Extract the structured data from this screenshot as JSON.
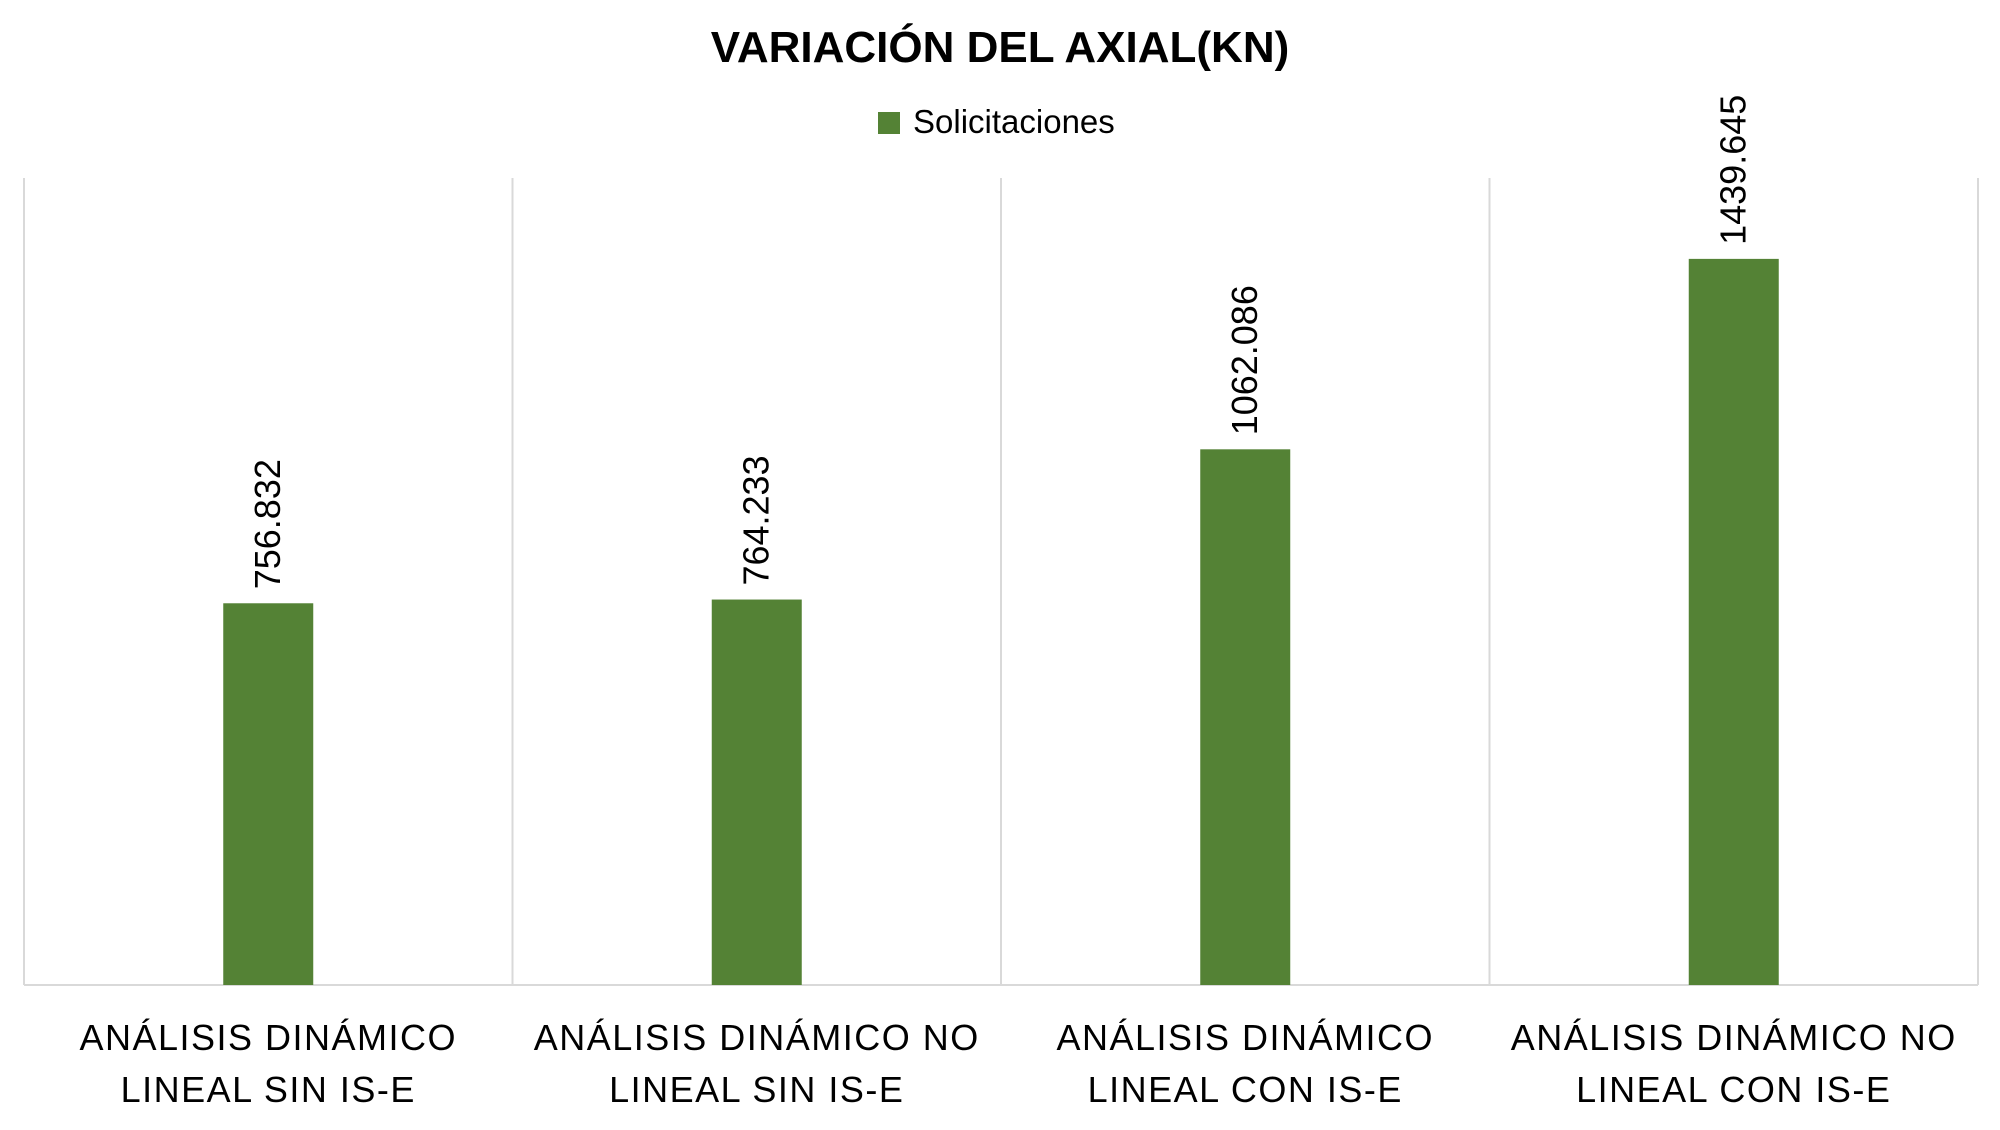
{
  "chart_data": {
    "type": "bar",
    "title": "VARIACIÓN DEL AXIAL(KN)",
    "categories": [
      [
        "ANÁLISIS DINÁMICO",
        "LINEAL SIN IS-E"
      ],
      [
        "ANÁLISIS DINÁMICO NO",
        "LINEAL SIN IS-E"
      ],
      [
        "ANÁLISIS DINÁMICO",
        "LINEAL CON IS-E"
      ],
      [
        "ANÁLISIS DINÁMICO NO",
        "LINEAL  CON IS-E"
      ]
    ],
    "series": [
      {
        "name": "Solicitaciones",
        "values": [
          756.832,
          764.233,
          1062.086,
          1439.645
        ],
        "labels": [
          "756.832",
          "764.233",
          "1062.086",
          "1439.645"
        ]
      }
    ],
    "xlabel": "",
    "ylabel": "",
    "ylim": [
      0,
      1600
    ],
    "grid": "vertical category separators",
    "legend_position": "top",
    "colors": {
      "bar": "#548235",
      "grid": "#d9d9d9",
      "axis": "#d9d9d9",
      "text": "#000000"
    }
  }
}
